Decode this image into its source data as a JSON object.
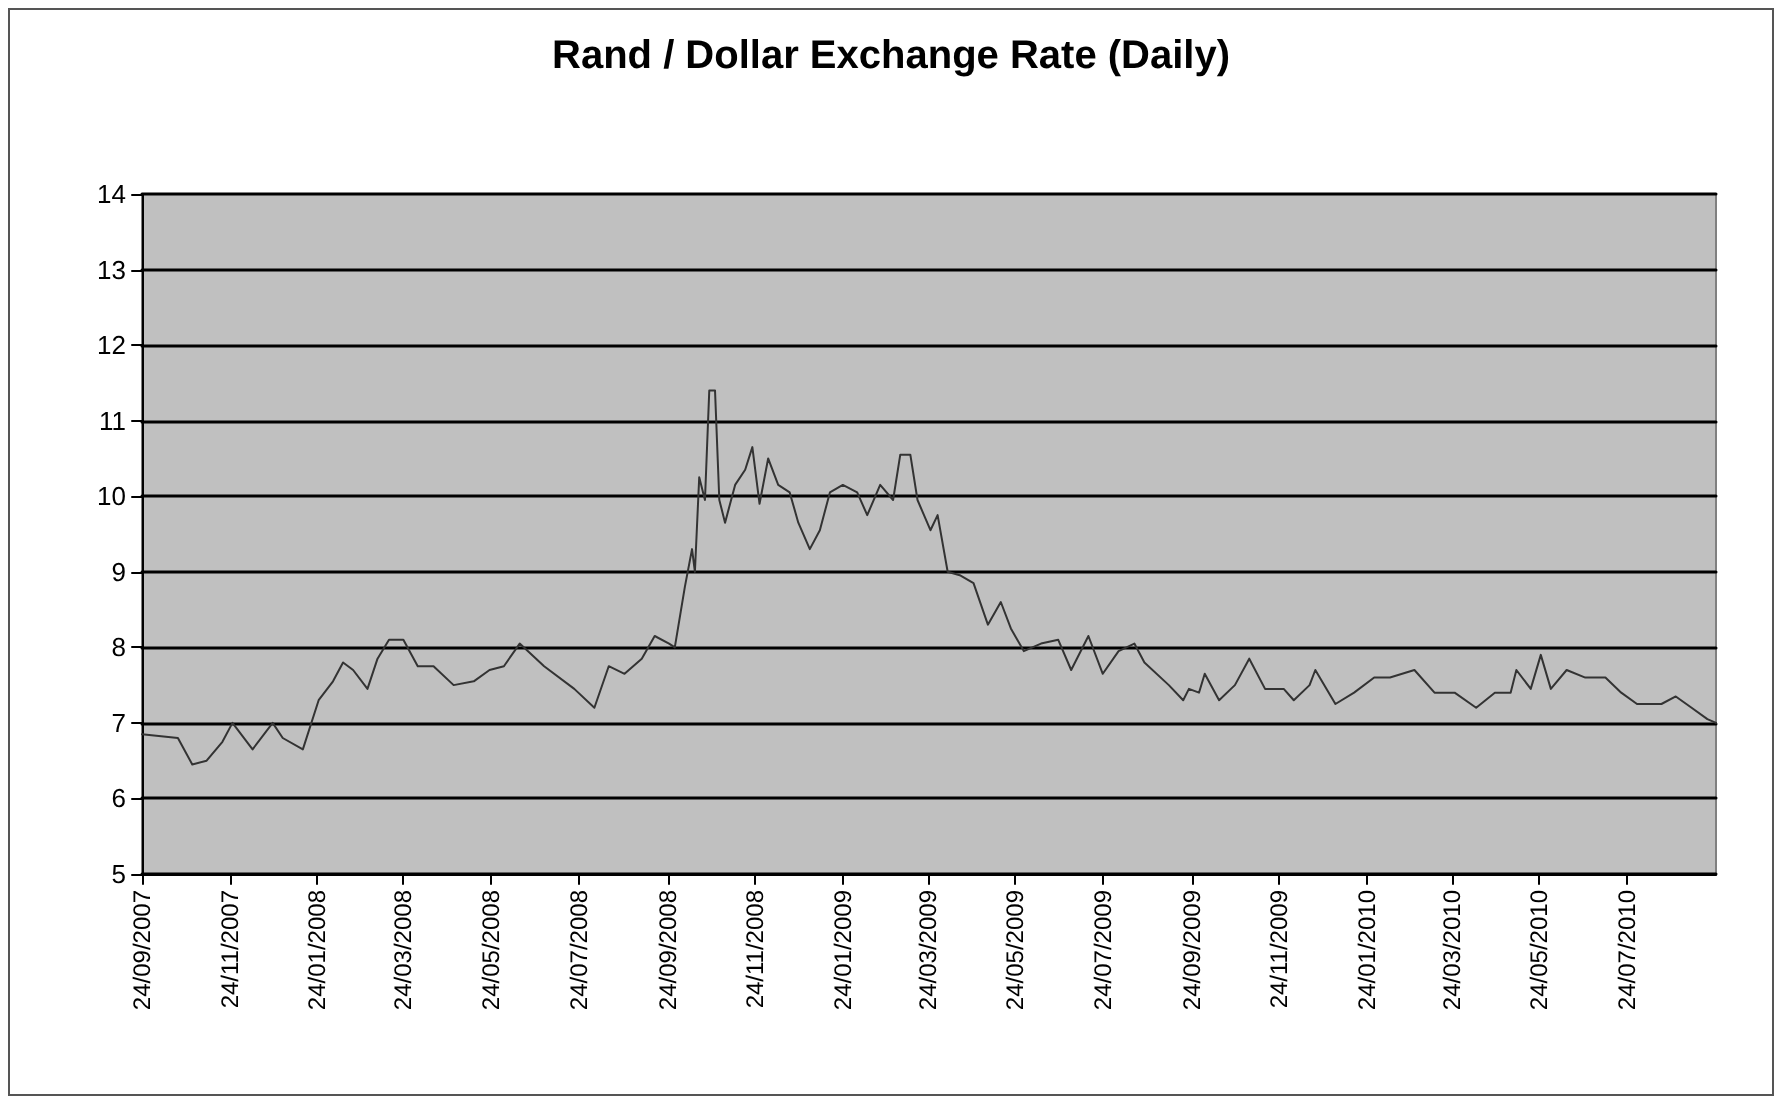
{
  "chart_data": {
    "type": "line",
    "title": "Rand / Dollar Exchange Rate (Daily)",
    "x": [
      "2007-09-24",
      "2007-10-19",
      "2007-10-29",
      "2007-11-08",
      "2007-11-19",
      "2007-11-26",
      "2007-12-10",
      "2007-12-24",
      "2007-12-31",
      "2008-01-14",
      "2008-01-25",
      "2008-02-04",
      "2008-02-11",
      "2008-02-18",
      "2008-02-28",
      "2008-03-06",
      "2008-03-14",
      "2008-03-24",
      "2008-04-03",
      "2008-04-14",
      "2008-04-28",
      "2008-05-12",
      "2008-05-23",
      "2008-06-02",
      "2008-06-13",
      "2008-06-30",
      "2008-07-21",
      "2008-08-04",
      "2008-08-14",
      "2008-08-25",
      "2008-09-06",
      "2008-09-15",
      "2008-09-25",
      "2008-09-29",
      "2008-10-06",
      "2008-10-11",
      "2008-10-13",
      "2008-10-16",
      "2008-10-20",
      "2008-10-23",
      "2008-10-27",
      "2008-10-30",
      "2008-11-03",
      "2008-11-10",
      "2008-11-17",
      "2008-11-22",
      "2008-11-27",
      "2008-12-03",
      "2008-12-10",
      "2008-12-18",
      "2008-12-24",
      "2009-01-01",
      "2009-01-08",
      "2009-01-15",
      "2009-01-24",
      "2009-02-03",
      "2009-02-10",
      "2009-02-19",
      "2009-02-28",
      "2009-03-05",
      "2009-03-12",
      "2009-03-17",
      "2009-03-26",
      "2009-03-31",
      "2009-04-07",
      "2009-04-16",
      "2009-04-25",
      "2009-05-05",
      "2009-05-14",
      "2009-05-21",
      "2009-05-30",
      "2009-06-11",
      "2009-06-23",
      "2009-07-02",
      "2009-07-14",
      "2009-07-24",
      "2009-08-04",
      "2009-08-15",
      "2009-08-22",
      "2009-09-08",
      "2009-09-18",
      "2009-09-22",
      "2009-09-29",
      "2009-10-03",
      "2009-10-13",
      "2009-10-24",
      "2009-11-03",
      "2009-11-14",
      "2009-11-27",
      "2009-12-04",
      "2009-12-15",
      "2009-12-19",
      "2010-01-02",
      "2010-01-15",
      "2010-01-29",
      "2010-02-09",
      "2010-02-26",
      "2010-03-12",
      "2010-03-26",
      "2010-04-10",
      "2010-04-23",
      "2010-05-04",
      "2010-05-08",
      "2010-05-18",
      "2010-05-25",
      "2010-06-01",
      "2010-06-12",
      "2010-06-25",
      "2010-07-09",
      "2010-07-20",
      "2010-07-31",
      "2010-08-17",
      "2010-08-27",
      "2010-09-07",
      "2010-09-18",
      "2010-09-24"
    ],
    "series": [
      {
        "color": "#333333",
        "values": [
          6.85,
          6.8,
          6.45,
          6.5,
          6.75,
          7.0,
          6.65,
          7.0,
          6.8,
          6.65,
          7.3,
          7.55,
          7.8,
          7.7,
          7.45,
          7.85,
          8.1,
          8.1,
          7.75,
          7.75,
          7.5,
          7.55,
          7.7,
          7.75,
          8.05,
          7.75,
          7.45,
          7.2,
          7.75,
          7.65,
          7.85,
          8.15,
          8.05,
          8.0,
          8.8,
          9.3,
          9.0,
          10.25,
          9.95,
          11.4,
          11.4,
          9.95,
          9.65,
          10.15,
          10.35,
          10.65,
          9.9,
          10.5,
          10.15,
          10.05,
          9.65,
          9.3,
          9.55,
          10.05,
          10.15,
          10.05,
          9.75,
          10.15,
          9.95,
          10.55,
          10.55,
          9.95,
          9.55,
          9.75,
          9.0,
          8.95,
          8.85,
          8.3,
          8.6,
          8.25,
          7.95,
          8.05,
          8.1,
          7.7,
          8.15,
          7.65,
          7.95,
          8.05,
          7.8,
          7.5,
          7.3,
          7.45,
          7.4,
          7.65,
          7.3,
          7.5,
          7.85,
          7.45,
          7.45,
          7.3,
          7.5,
          7.7,
          7.25,
          7.4,
          7.6,
          7.6,
          7.7,
          7.4,
          7.4,
          7.2,
          7.4,
          7.4,
          7.7,
          7.45,
          7.9,
          7.45,
          7.7,
          7.6,
          7.6,
          7.4,
          7.25,
          7.25,
          7.35,
          7.2,
          7.05,
          7.0
        ]
      }
    ],
    "xlim": [
      "2007-09-24",
      "2010-09-24"
    ],
    "xticks": [
      {
        "value": "2007-09-24",
        "label": "24/09/2007"
      },
      {
        "value": "2007-11-24",
        "label": "24/11/2007"
      },
      {
        "value": "2008-01-24",
        "label": "24/01/2008"
      },
      {
        "value": "2008-03-24",
        "label": "24/03/2008"
      },
      {
        "value": "2008-05-24",
        "label": "24/05/2008"
      },
      {
        "value": "2008-07-24",
        "label": "24/07/2008"
      },
      {
        "value": "2008-09-24",
        "label": "24/09/2008"
      },
      {
        "value": "2008-11-24",
        "label": "24/11/2008"
      },
      {
        "value": "2009-01-24",
        "label": "24/01/2009"
      },
      {
        "value": "2009-03-24",
        "label": "24/03/2009"
      },
      {
        "value": "2009-05-24",
        "label": "24/05/2009"
      },
      {
        "value": "2009-07-24",
        "label": "24/07/2009"
      },
      {
        "value": "2009-09-24",
        "label": "24/09/2009"
      },
      {
        "value": "2009-11-24",
        "label": "24/11/2009"
      },
      {
        "value": "2010-01-24",
        "label": "24/01/2010"
      },
      {
        "value": "2010-03-24",
        "label": "24/03/2010"
      },
      {
        "value": "2010-05-24",
        "label": "24/05/2010"
      },
      {
        "value": "2010-07-24",
        "label": "24/07/2010"
      }
    ],
    "ylim": [
      5,
      14
    ],
    "yticks": [
      5,
      6,
      7,
      8,
      9,
      10,
      11,
      12,
      13,
      14
    ],
    "grid": "y",
    "marker": "none",
    "line_style": "solid"
  }
}
